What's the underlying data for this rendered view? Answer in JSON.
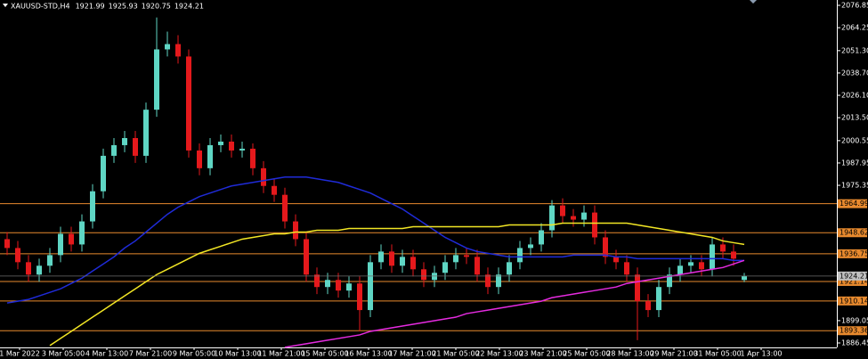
{
  "chart_data": {
    "type": "candlestick",
    "title": "XAUUSD-STD,H4",
    "header_ohlc": [
      1921.99,
      1925.93,
      1920.75,
      1924.21
    ],
    "open": [
      1945,
      1940,
      1932,
      1925,
      1930,
      1936,
      1948,
      1942,
      1955,
      1972,
      1992,
      1998,
      2002,
      1992,
      2018,
      2052,
      2055,
      2048,
      1995,
      1985,
      1998,
      2000,
      1995,
      1996,
      1985,
      1975,
      1970,
      1955,
      1945,
      1925,
      1918,
      1922,
      1916,
      1920,
      1905,
      1932,
      1938,
      1930,
      1935,
      1928,
      1922,
      1926,
      1932,
      1936,
      1935,
      1925,
      1918,
      1925,
      1932,
      1940,
      1942,
      1950,
      1964,
      1958,
      1956,
      1960,
      1946,
      1935,
      1932,
      1925,
      1910,
      1905,
      1918,
      1925,
      1930,
      1932,
      1928,
      1942,
      1938,
      1921.99
    ],
    "high": [
      1949,
      1944,
      1936,
      1934,
      1940,
      1952,
      1952,
      1959,
      1976,
      1996,
      2002,
      2006,
      2006,
      2022,
      2070,
      2062,
      2060,
      2052,
      1999,
      2002,
      2004,
      2004,
      2000,
      1999,
      1989,
      1979,
      1974,
      1959,
      1949,
      1929,
      1926,
      1926,
      1924,
      1924,
      1936,
      1942,
      1942,
      1939,
      1939,
      1932,
      1930,
      1936,
      1940,
      1940,
      1939,
      1929,
      1929,
      1936,
      1944,
      1946,
      1954,
      1967,
      1968,
      1962,
      1964,
      1964,
      1950,
      1939,
      1936,
      1929,
      1914,
      1922,
      1929,
      1934,
      1936,
      1936,
      1946,
      1946,
      1942,
      1925.93
    ],
    "low": [
      1936,
      1928,
      1921,
      1921,
      1926,
      1932,
      1938,
      1938,
      1951,
      1968,
      1988,
      1994,
      1988,
      1988,
      2014,
      2048,
      2044,
      1991,
      1981,
      1981,
      1994,
      1991,
      1991,
      1981,
      1971,
      1966,
      1951,
      1941,
      1921,
      1914,
      1914,
      1912,
      1912,
      1893,
      1901,
      1928,
      1926,
      1926,
      1924,
      1918,
      1918,
      1922,
      1928,
      1931,
      1921,
      1914,
      1914,
      1921,
      1928,
      1936,
      1938,
      1946,
      1954,
      1952,
      1952,
      1942,
      1931,
      1928,
      1921,
      1888,
      1901,
      1901,
      1914,
      1921,
      1926,
      1924,
      1924,
      1934,
      1930,
      1920.75
    ],
    "close": [
      1940,
      1932,
      1925,
      1930,
      1936,
      1948,
      1942,
      1955,
      1972,
      1992,
      1998,
      2002,
      1992,
      2018,
      2052,
      2055,
      2048,
      1995,
      1985,
      1998,
      2000,
      1995,
      1996,
      1985,
      1975,
      1970,
      1955,
      1945,
      1925,
      1918,
      1922,
      1916,
      1920,
      1905,
      1932,
      1938,
      1930,
      1935,
      1928,
      1922,
      1926,
      1932,
      1936,
      1935,
      1925,
      1918,
      1925,
      1932,
      1940,
      1942,
      1950,
      1964,
      1958,
      1956,
      1960,
      1946,
      1935,
      1932,
      1925,
      1910,
      1905,
      1918,
      1925,
      1930,
      1932,
      1928,
      1942,
      1938,
      1934,
      1924.21
    ],
    "up_color": "#5fd6c4",
    "down_color": "#e5191c",
    "series": [
      {
        "color": "#1f2bd8",
        "values": [
          1909,
          1910,
          1911,
          1913,
          1915,
          1917,
          1920,
          1923,
          1927,
          1931,
          1935,
          1940,
          1944,
          1949,
          1954,
          1959,
          1963,
          1966,
          1969,
          1971,
          1973,
          1975,
          1976,
          1977,
          1978,
          1979,
          1980,
          1980,
          1980,
          1979,
          1978,
          1977,
          1975,
          1973,
          1971,
          1968,
          1965,
          1962,
          1958,
          1954,
          1950,
          1946,
          1943,
          1940,
          1938,
          1937,
          1936,
          1935,
          1935,
          1935,
          1935,
          1935,
          1935,
          1936,
          1936,
          1936,
          1936,
          1935,
          1935,
          1934,
          1934,
          1934,
          1934,
          1934,
          1934,
          1934,
          1934,
          1934,
          1933,
          1933
        ]
      },
      {
        "color": "#f2e625",
        "values": [
          null,
          null,
          null,
          null,
          1885,
          1889,
          1893,
          1897,
          1901,
          1905,
          1909,
          1913,
          1917,
          1921,
          1925,
          1928,
          1931,
          1934,
          1937,
          1939,
          1941,
          1943,
          1945,
          1946,
          1947,
          1948,
          1948,
          1949,
          1949,
          1950,
          1950,
          1950,
          1951,
          1951,
          1951,
          1951,
          1951,
          1951,
          1952,
          1952,
          1952,
          1952,
          1952,
          1952,
          1952,
          1952,
          1952,
          1953,
          1953,
          1953,
          1953,
          1953,
          1954,
          1954,
          1954,
          1954,
          1954,
          1954,
          1954,
          1953,
          1952,
          1951,
          1950,
          1949,
          1948,
          1947,
          1946,
          1944,
          1943,
          1942
        ]
      },
      {
        "color": "#e52be0",
        "values": [
          null,
          null,
          null,
          null,
          null,
          null,
          null,
          null,
          null,
          null,
          null,
          null,
          null,
          null,
          null,
          null,
          null,
          null,
          null,
          null,
          null,
          null,
          null,
          null,
          null,
          null,
          1884,
          1885,
          1886,
          1887,
          1888,
          1889,
          1890,
          1891,
          1893,
          1894,
          1895,
          1896,
          1897,
          1898,
          1899,
          1900,
          1901,
          1903,
          1904,
          1905,
          1906,
          1907,
          1908,
          1909,
          1910,
          1912,
          1913,
          1914,
          1915,
          1916,
          1917,
          1918,
          1920,
          1921,
          1922,
          1923,
          1924,
          1925,
          1926,
          1927,
          1928,
          1929,
          1931,
          1933
        ]
      }
    ],
    "levels": [
      1964.99,
      1948.62,
      1936.75,
      1921.14,
      1910.14,
      1893.36
    ],
    "level_color": "#e88a2e",
    "ylim": [
      1883.94,
      2079.86
    ],
    "yticks": [
      2076.85,
      2064.25,
      {
        "value": 2051.3,
        "label": "2051.30"
      },
      {
        "value": 2038.7,
        "label": "2038.70"
      },
      {
        "value": 2026.1,
        "label": "2026.10"
      },
      {
        "value": 2013.5,
        "label": "2013.50"
      },
      2000.55,
      1987.95,
      1975.35,
      1899.05,
      1886.45
    ],
    "x_labels": [
      "1 Mar 2022",
      "3 Mar 05:00",
      "4 Mar 13:00",
      "7 Mar 21:00",
      "9 Mar 05:00",
      "10 Mar 13:00",
      "11 Mar 21:00",
      "15 Mar 05:00",
      "16 Mar 13:00",
      "17 Mar 21:00",
      "21 Mar 05:00",
      "22 Mar 13:00",
      "23 Mar 21:00",
      "25 Mar 05:00",
      "28 Mar 13:00",
      "29 Mar 21:00",
      "31 Mar 05:00",
      "1 Apr 13:00"
    ]
  }
}
